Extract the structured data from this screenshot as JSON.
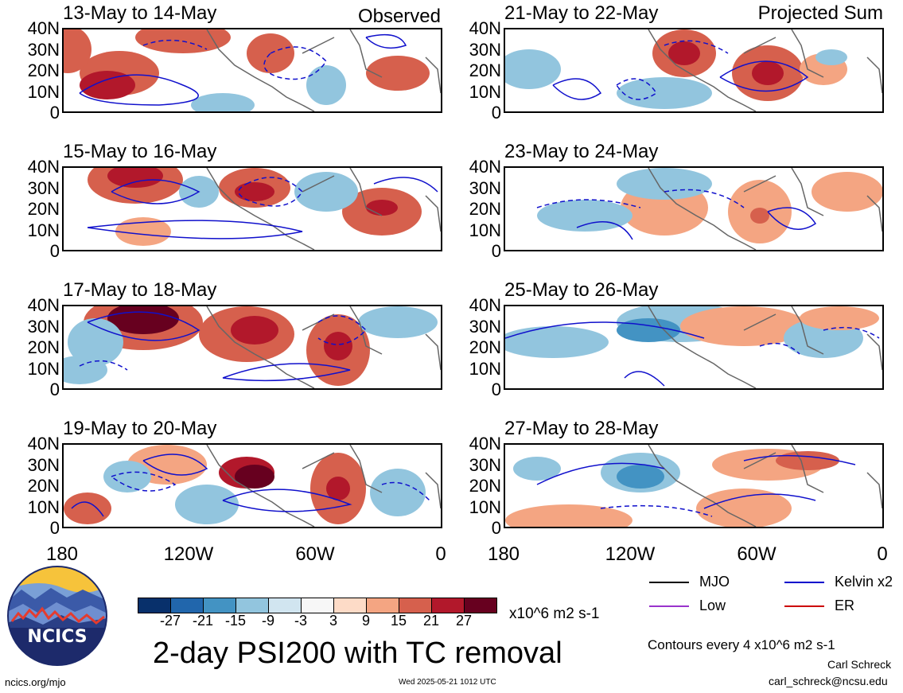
{
  "chart_data": {
    "type": "heatmap",
    "title": "2-day PSI200 with TC removal",
    "colorbar": {
      "unit": "x10^6 m2 s-1",
      "ticks": [
        "-27",
        "-21",
        "-15",
        "-9",
        "-3",
        "3",
        "9",
        "15",
        "21",
        "27"
      ],
      "colors": [
        "#08306b",
        "#2166ac",
        "#4393c3",
        "#92c5de",
        "#d1e5f0",
        "#f7f7f7",
        "#fddbc7",
        "#f4a582",
        "#d6604d",
        "#b2182b",
        "#67001f"
      ]
    },
    "x_ticks": [
      "180",
      "120W",
      "60W",
      "0"
    ],
    "y_ticks": [
      "40N",
      "30N",
      "20N",
      "10N",
      "0"
    ],
    "columns": [
      {
        "label": "Observed",
        "panels": [
          "13-May to 14-May",
          "15-May to 16-May",
          "17-May to 18-May",
          "19-May to 20-May"
        ]
      },
      {
        "label": "Projected Sum",
        "panels": [
          "21-May to 22-May",
          "23-May to 24-May",
          "25-May to 26-May",
          "27-May to 28-May"
        ]
      }
    ],
    "legend": {
      "position": "bottom-right",
      "items": [
        {
          "label": "MJO",
          "color": "#000000"
        },
        {
          "label": "Kelvin x2",
          "color": "#0000cc"
        },
        {
          "label": "Low",
          "color": "#9933cc"
        },
        {
          "label": "ER",
          "color": "#cc0000"
        }
      ]
    },
    "contour_note": "Contours every 4 x10^6 m2 s-1"
  },
  "footer": {
    "logo_text": "NCICS",
    "url": "ncics.org/mjo",
    "timestamp": "Wed 2025-05-21 1012 UTC",
    "author": "Carl Schreck",
    "email": "carl_schreck@ncsu.edu"
  }
}
